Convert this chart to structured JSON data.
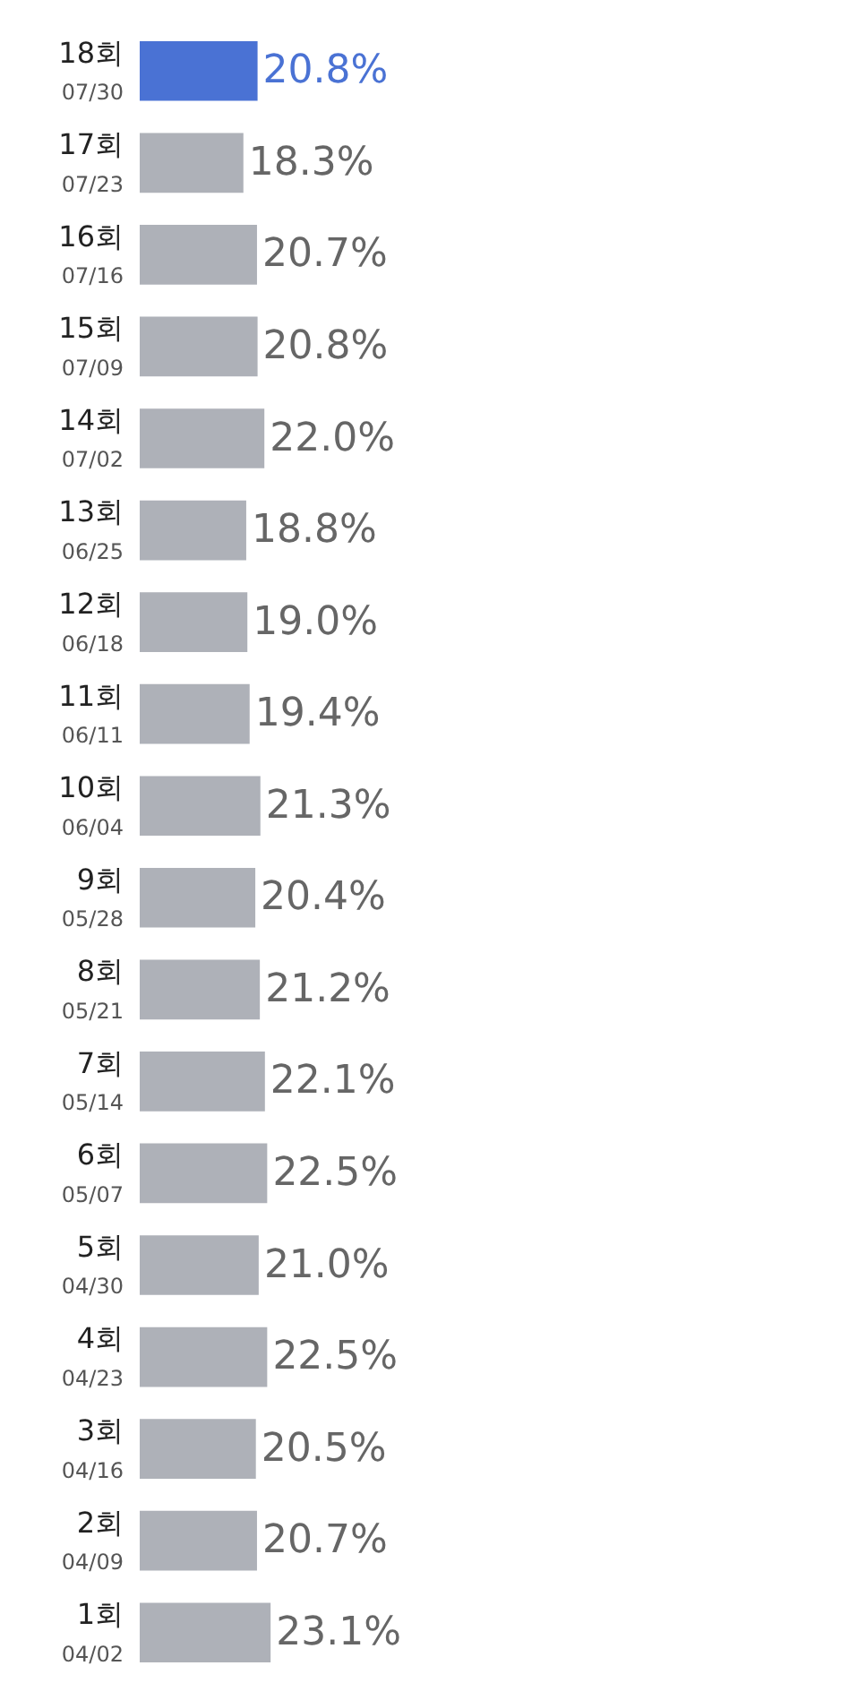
{
  "chart_data": {
    "type": "bar",
    "orientation": "horizontal",
    "data_labels": true,
    "categories": [
      "18회\n07/30",
      "17회\n07/23",
      "16회\n07/16",
      "15회\n07/09",
      "14회\n07/02",
      "13회\n06/25",
      "12회\n06/18",
      "11회\n06/11",
      "10회\n06/04",
      "9회\n05/28",
      "8회\n05/21",
      "7회\n05/14",
      "6회\n05/07",
      "5회\n04/30",
      "4회\n04/23",
      "3회\n04/16",
      "2회\n04/09",
      "1회\n04/02"
    ],
    "values": [
      20.8,
      18.3,
      20.7,
      20.8,
      22.0,
      18.8,
      19.0,
      19.4,
      21.3,
      20.4,
      21.2,
      22.1,
      22.5,
      21.0,
      22.5,
      20.5,
      20.7,
      23.1
    ],
    "value_labels": [
      "20.8%",
      "18.3%",
      "20.7%",
      "20.8%",
      "22.0%",
      "18.8%",
      "19.0%",
      "19.4%",
      "21.3%",
      "20.4%",
      "21.2%",
      "22.1%",
      "22.5%",
      "21.0%",
      "22.5%",
      "20.5%",
      "20.7%",
      "23.1%"
    ],
    "colors": [
      "#4a72d4",
      "#aeb1b8",
      "#aeb1b8",
      "#aeb1b8",
      "#aeb1b8",
      "#aeb1b8",
      "#aeb1b8",
      "#aeb1b8",
      "#aeb1b8",
      "#aeb1b8",
      "#aeb1b8",
      "#aeb1b8",
      "#aeb1b8",
      "#aeb1b8",
      "#aeb1b8",
      "#aeb1b8",
      "#aeb1b8",
      "#aeb1b8"
    ],
    "legend": false
  }
}
